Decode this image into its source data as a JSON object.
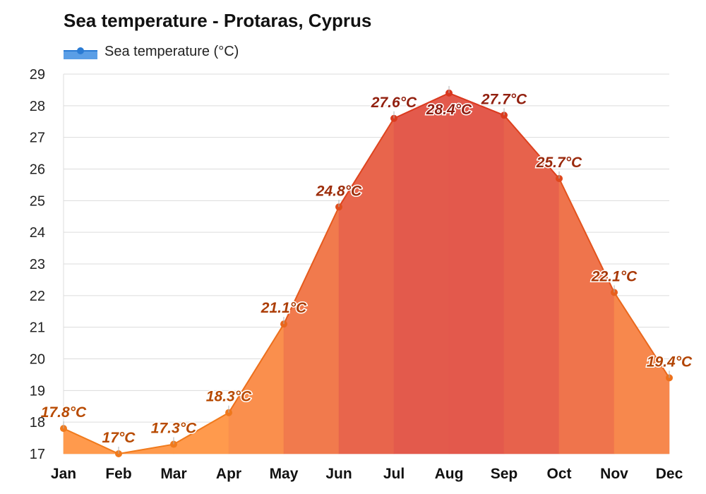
{
  "title": "Sea temperature - Protaras, Cyprus",
  "legend": {
    "label": "Sea temperature (°C)",
    "color": "#3b8ee0"
  },
  "chart_data": {
    "type": "area",
    "title": "Sea temperature - Protaras, Cyprus",
    "categories": [
      "Jan",
      "Feb",
      "Mar",
      "Apr",
      "May",
      "Jun",
      "Jul",
      "Aug",
      "Sep",
      "Oct",
      "Nov",
      "Dec"
    ],
    "series": [
      {
        "name": "Sea temperature (°C)",
        "values": [
          17.8,
          17,
          17.3,
          18.3,
          21.1,
          24.8,
          27.6,
          28.4,
          27.7,
          25.7,
          22.1,
          19.4
        ],
        "labels": [
          "17.8°C",
          "17°C",
          "17.3°C",
          "18.3°C",
          "21.1°C",
          "24.8°C",
          "27.6°C",
          "28.4°C",
          "27.7°C",
          "25.7°C",
          "22.1°C",
          "19.4°C"
        ]
      }
    ],
    "ylim": [
      17,
      29
    ],
    "yticks": [
      17,
      18,
      19,
      20,
      21,
      22,
      23,
      24,
      25,
      26,
      27,
      28,
      29
    ],
    "grid": true,
    "legend_position": "top-left",
    "colors": {
      "cool": "#ff9a4d",
      "warm": "#e2574c",
      "line_cool": "#f07a1c",
      "line_warm": "#d9361e",
      "label_cool": "#b84a00",
      "label_warm": "#8f1d10"
    }
  }
}
